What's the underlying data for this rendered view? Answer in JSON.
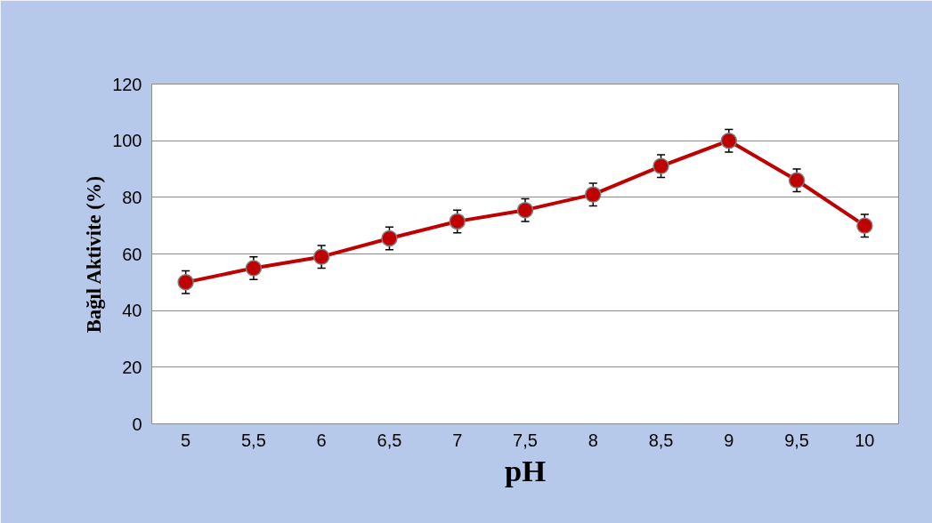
{
  "chart_data": {
    "type": "line",
    "xlabel": "pH",
    "ylabel": "Bağıl Aktivite (%)",
    "categories": [
      "5",
      "5,5",
      "6",
      "6,5",
      "7",
      "7,5",
      "8",
      "8,5",
      "9",
      "9,5",
      "10"
    ],
    "series": [
      {
        "color": "#c00000",
        "values": [
          50,
          55,
          59,
          65.5,
          71.5,
          75.5,
          81,
          91,
          100,
          86,
          70
        ],
        "errors": [
          4,
          4,
          4,
          4,
          4,
          4,
          4,
          4,
          4,
          4,
          4
        ]
      }
    ],
    "ylim": [
      0,
      120
    ],
    "yticks": [
      0,
      20,
      40,
      60,
      80,
      100,
      120
    ],
    "grid": "y",
    "marker": "circle",
    "line_style": "solid"
  }
}
